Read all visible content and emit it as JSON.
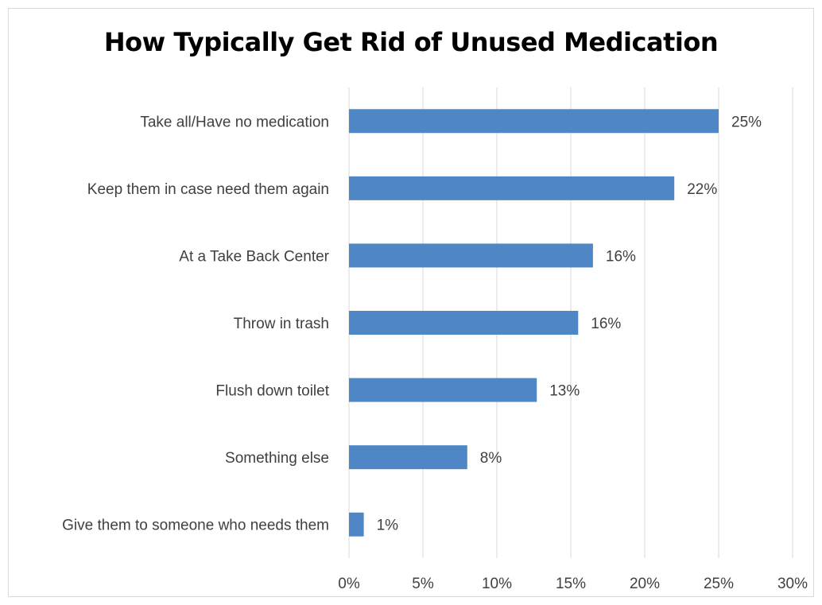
{
  "chart_data": {
    "type": "bar",
    "orientation": "horizontal",
    "title": "How Typically Get Rid of Unused Medication",
    "xlabel": "",
    "ylabel": "",
    "categories": [
      "Take all/Have no medication",
      "Keep them in case need them again",
      "At a Take Back Center",
      "Throw in trash",
      "Flush down toilet",
      "Something else",
      "Give them to someone who needs them"
    ],
    "values": [
      25,
      22,
      16.5,
      15.5,
      12.7,
      8,
      1
    ],
    "data_labels": [
      "25%",
      "22%",
      "16%",
      "16%",
      "13%",
      "8%",
      "1%"
    ],
    "xlim": [
      0,
      30
    ],
    "xticks": [
      0,
      5,
      10,
      15,
      20,
      25,
      30
    ],
    "xtick_labels": [
      "0%",
      "5%",
      "10%",
      "15%",
      "20%",
      "25%",
      "30%"
    ],
    "grid": "vertical",
    "legend": "none",
    "colors": {
      "bar": "#4f86c6",
      "grid": "#d9d9d9",
      "text": "#404040",
      "title": "#000000"
    }
  }
}
